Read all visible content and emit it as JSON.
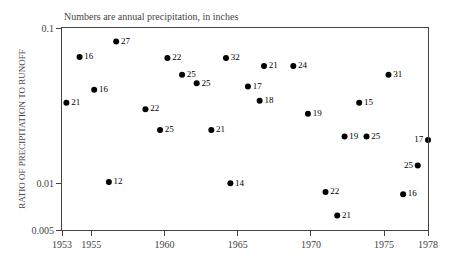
{
  "chart_data": {
    "type": "scatter",
    "annotation": "Numbers are annual precipitation, in inches",
    "ylabel": "RATIO OF PRECIPITATION TO RUNOFF",
    "x": [
      1953.3,
      1954.2,
      1956.7,
      1955.2,
      1956.2,
      1958.7,
      1959.7,
      1960.2,
      1961.2,
      1962.2,
      1963.2,
      1964.5,
      1964.2,
      1965.7,
      1966.5,
      1966.8,
      1968.8,
      1969.8,
      1971.0,
      1971.8,
      1972.3,
      1973.3,
      1973.8,
      1975.3,
      1976.3,
      1977.3,
      1978.0
    ],
    "values": [
      0.033,
      0.065,
      0.082,
      0.04,
      0.0102,
      0.03,
      0.022,
      0.064,
      0.05,
      0.044,
      0.022,
      0.01,
      0.064,
      0.042,
      0.034,
      0.057,
      0.057,
      0.028,
      0.0088,
      0.0062,
      0.02,
      0.033,
      0.02,
      0.05,
      0.0085,
      0.013,
      0.019
    ],
    "precipitation": [
      21,
      16,
      27,
      16,
      12,
      22,
      25,
      22,
      25,
      25,
      21,
      14,
      32,
      17,
      18,
      21,
      24,
      19,
      22,
      21,
      19,
      15,
      25,
      31,
      16,
      25,
      17
    ],
    "color": "#000000",
    "marker": "circle",
    "xlim": [
      1953,
      1978
    ],
    "ylim": [
      0.005,
      0.1
    ],
    "xticks": [
      1953,
      1955,
      1960,
      1965,
      1970,
      1975,
      1978
    ],
    "yticks": [
      0.005,
      0.01,
      0.1
    ],
    "log": "y",
    "grid": false
  }
}
